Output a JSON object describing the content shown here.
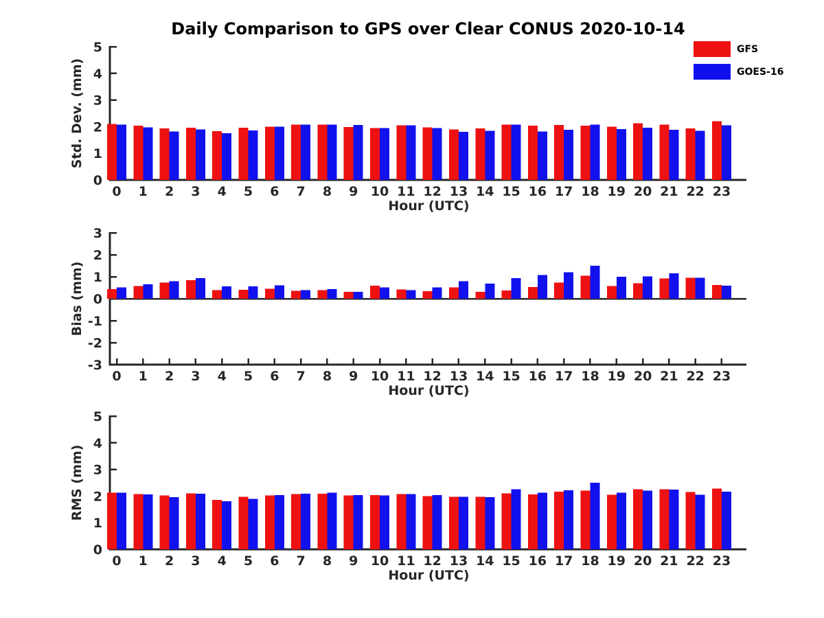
{
  "title": "Daily Comparison to GPS over Clear CONUS 2020-10-14",
  "legend": {
    "items": [
      {
        "label": "GFS",
        "color": "#ee1111"
      },
      {
        "label": "GOES-16",
        "color": "#1111ee"
      }
    ]
  },
  "colors": {
    "gfs": "#ee1111",
    "goes16": "#1111ee",
    "axis": "#262626",
    "background": "#ffffff"
  },
  "chart_data": [
    {
      "type": "bar",
      "name": "stddev",
      "title": "",
      "ylabel": "Std. Dev. (mm)",
      "xlabel": "Hour (UTC)",
      "categories": [
        "0",
        "1",
        "2",
        "3",
        "4",
        "5",
        "6",
        "7",
        "8",
        "9",
        "10",
        "11",
        "12",
        "13",
        "14",
        "15",
        "16",
        "17",
        "18",
        "19",
        "20",
        "21",
        "22",
        "23"
      ],
      "ylim": [
        0,
        5
      ],
      "yticks": [
        0,
        1,
        2,
        3,
        4,
        5
      ],
      "grid": false,
      "legend_position": "top-right-outside",
      "series": [
        {
          "name": "GFS",
          "color": "#ee1111",
          "values": [
            2.1,
            2.03,
            1.93,
            1.96,
            1.83,
            1.96,
            2.0,
            2.07,
            2.07,
            1.99,
            1.95,
            2.05,
            1.97,
            1.9,
            1.93,
            2.08,
            2.04,
            2.06,
            2.04,
            2.0,
            2.13,
            2.07,
            1.93,
            2.2
          ]
        },
        {
          "name": "GOES-16",
          "color": "#1111ee",
          "values": [
            2.07,
            1.97,
            1.82,
            1.9,
            1.75,
            1.86,
            2.0,
            2.07,
            2.07,
            2.06,
            1.95,
            2.05,
            1.95,
            1.81,
            1.84,
            2.08,
            1.82,
            1.88,
            2.07,
            1.91,
            1.96,
            1.88,
            1.84,
            2.05
          ]
        }
      ]
    },
    {
      "type": "bar",
      "name": "bias",
      "title": "",
      "ylabel": "Bias (mm)",
      "xlabel": "Hour (UTC)",
      "categories": [
        "0",
        "1",
        "2",
        "3",
        "4",
        "5",
        "6",
        "7",
        "8",
        "9",
        "10",
        "11",
        "12",
        "13",
        "14",
        "15",
        "16",
        "17",
        "18",
        "19",
        "20",
        "21",
        "22",
        "23"
      ],
      "ylim": [
        -3,
        3
      ],
      "yticks": [
        -3,
        -2,
        -1,
        0,
        1,
        2,
        3
      ],
      "grid": false,
      "legend_position": "none",
      "series": [
        {
          "name": "GFS",
          "color": "#ee1111",
          "values": [
            0.43,
            0.58,
            0.74,
            0.84,
            0.39,
            0.41,
            0.46,
            0.36,
            0.39,
            0.32,
            0.6,
            0.42,
            0.35,
            0.52,
            0.31,
            0.37,
            0.53,
            0.73,
            1.05,
            0.58,
            0.7,
            0.92,
            0.95,
            0.63
          ]
        },
        {
          "name": "GOES-16",
          "color": "#1111ee",
          "values": [
            0.51,
            0.65,
            0.8,
            0.94,
            0.56,
            0.56,
            0.61,
            0.39,
            0.43,
            0.32,
            0.52,
            0.39,
            0.52,
            0.79,
            0.68,
            0.93,
            1.08,
            1.2,
            1.5,
            1.0,
            1.01,
            1.16,
            0.95,
            0.6
          ]
        }
      ]
    },
    {
      "type": "bar",
      "name": "rms",
      "title": "",
      "ylabel": "RMS (mm)",
      "xlabel": "Hour (UTC)",
      "categories": [
        "0",
        "1",
        "2",
        "3",
        "4",
        "5",
        "6",
        "7",
        "8",
        "9",
        "10",
        "11",
        "12",
        "13",
        "14",
        "15",
        "16",
        "17",
        "18",
        "19",
        "20",
        "21",
        "22",
        "23"
      ],
      "ylim": [
        0,
        5
      ],
      "yticks": [
        0,
        1,
        2,
        3,
        4,
        5
      ],
      "grid": false,
      "legend_position": "none",
      "series": [
        {
          "name": "GFS",
          "color": "#ee1111",
          "values": [
            2.13,
            2.07,
            2.02,
            2.1,
            1.85,
            1.97,
            2.02,
            2.07,
            2.09,
            2.02,
            2.04,
            2.07,
            2.0,
            1.97,
            1.97,
            2.1,
            2.06,
            2.16,
            2.2,
            2.05,
            2.25,
            2.25,
            2.15,
            2.28
          ]
        },
        {
          "name": "GOES-16",
          "color": "#1111ee",
          "values": [
            2.13,
            2.06,
            1.96,
            2.09,
            1.8,
            1.9,
            2.04,
            2.09,
            2.12,
            2.04,
            2.02,
            2.07,
            2.03,
            1.97,
            1.96,
            2.26,
            2.12,
            2.22,
            2.5,
            2.13,
            2.2,
            2.24,
            2.05,
            2.16
          ]
        }
      ]
    }
  ]
}
